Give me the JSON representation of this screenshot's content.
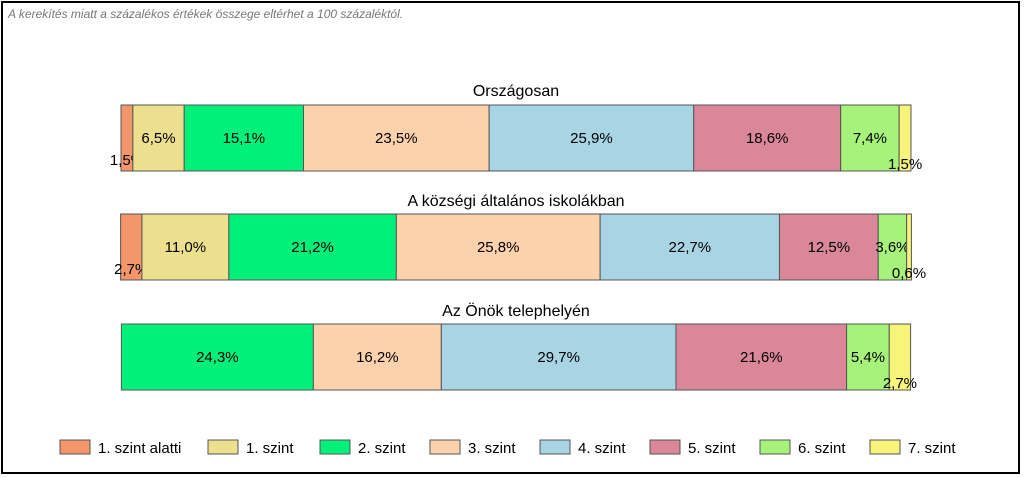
{
  "note": "A kerekítés miatt a  százalékos értékek összege eltérhet a 100 százaléktól.",
  "chart_data": {
    "type": "bar",
    "orientation": "horizontal-stacked",
    "unit": "%",
    "categories": [
      "1. szint alatti",
      "1. szint",
      "2. szint",
      "3. szint",
      "4. szint",
      "5. szint",
      "6. szint",
      "7. szint"
    ],
    "colors": [
      "#f4966b",
      "#ece08e",
      "#00f07a",
      "#fcd2ad",
      "#a8d4e4",
      "#d98799",
      "#a6f27a",
      "#f8f47a"
    ],
    "bars": [
      {
        "title": "Országosan",
        "values": [
          1.5,
          6.5,
          15.1,
          23.5,
          25.9,
          18.6,
          7.4,
          1.5
        ]
      },
      {
        "title": "A községi általános iskolákban",
        "values": [
          2.7,
          11.0,
          21.2,
          25.8,
          22.7,
          12.5,
          3.6,
          0.6
        ]
      },
      {
        "title": "Az Önök telephelyén",
        "values": [
          0,
          0,
          24.3,
          16.2,
          29.7,
          21.6,
          5.4,
          2.7
        ]
      }
    ],
    "legend": {
      "position": "bottom"
    }
  }
}
